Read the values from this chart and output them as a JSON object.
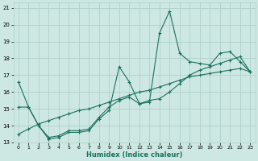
{
  "xlabel": "Humidex (Indice chaleur)",
  "xlim": [
    -0.5,
    23.5
  ],
  "ylim": [
    13,
    21.3
  ],
  "yticks": [
    13,
    14,
    15,
    16,
    17,
    18,
    19,
    20,
    21
  ],
  "xticks": [
    0,
    1,
    2,
    3,
    4,
    5,
    6,
    7,
    8,
    9,
    10,
    11,
    12,
    13,
    14,
    15,
    16,
    17,
    18,
    19,
    20,
    21,
    22,
    23
  ],
  "bg_color": "#cde8e2",
  "grid_color": "#b0d0ca",
  "line_color": "#1a7060",
  "lines": [
    {
      "x": [
        0,
        1,
        2,
        3,
        4,
        5,
        6,
        7,
        8,
        9,
        10,
        11,
        12,
        13,
        14,
        15,
        16,
        17,
        18,
        19,
        20,
        21,
        22,
        23
      ],
      "y": [
        16.6,
        15.1,
        14.0,
        13.2,
        13.3,
        13.6,
        13.6,
        13.7,
        14.4,
        14.9,
        17.5,
        16.6,
        15.3,
        15.4,
        19.5,
        20.8,
        18.3,
        17.8,
        17.7,
        17.6,
        18.3,
        18.4,
        17.8,
        17.2
      ]
    },
    {
      "x": [
        0,
        1,
        2,
        3,
        4,
        5,
        6,
        7,
        8,
        9,
        10,
        11,
        12,
        13,
        14,
        15,
        16,
        17,
        18,
        19,
        20,
        21,
        22,
        23
      ],
      "y": [
        15.1,
        15.1,
        14.0,
        13.3,
        13.4,
        13.7,
        13.7,
        13.8,
        14.5,
        15.1,
        15.5,
        15.7,
        15.3,
        15.5,
        15.6,
        16.0,
        16.5,
        17.0,
        17.3,
        17.5,
        17.7,
        17.9,
        18.1,
        17.2
      ]
    },
    {
      "x": [
        0,
        1,
        2,
        3,
        4,
        5,
        6,
        7,
        8,
        9,
        10,
        11,
        12,
        13,
        14,
        15,
        16,
        17,
        18,
        19,
        20,
        21,
        22,
        23
      ],
      "y": [
        13.5,
        13.8,
        14.1,
        14.3,
        14.5,
        14.7,
        14.9,
        15.0,
        15.2,
        15.4,
        15.6,
        15.8,
        16.0,
        16.1,
        16.3,
        16.5,
        16.7,
        16.9,
        17.0,
        17.1,
        17.2,
        17.3,
        17.4,
        17.2
      ]
    }
  ]
}
